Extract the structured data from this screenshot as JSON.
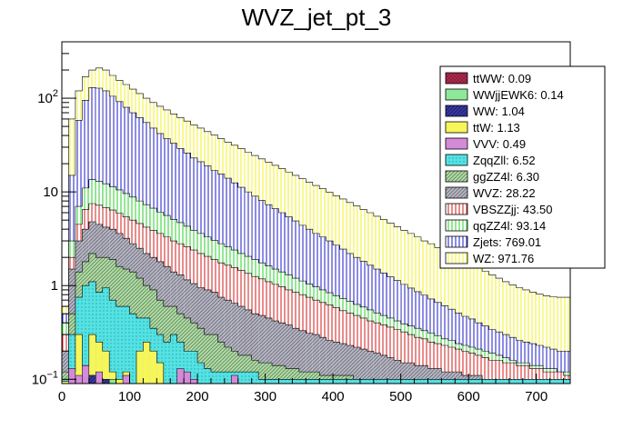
{
  "chart_data": {
    "type": "bar",
    "subtype": "stacked-histogram",
    "title": "WVZ_jet_pt_3",
    "xlabel": "",
    "ylabel": "",
    "x_range": [
      0,
      750
    ],
    "y_range": [
      0.09,
      400
    ],
    "y_scale": "log",
    "bin_width": 10,
    "x_ticks": [
      0,
      100,
      200,
      300,
      400,
      500,
      600,
      700
    ],
    "x_tick_labels": [
      "0",
      "100",
      "200",
      "300",
      "400",
      "500",
      "600",
      "700"
    ],
    "y_tick_labels": [
      {
        "value": 0.1,
        "base": "10",
        "exp": "−1"
      },
      {
        "value": 1,
        "text": "1"
      },
      {
        "value": 10,
        "text": "10"
      },
      {
        "value": 100,
        "base": "10",
        "exp": "2"
      }
    ],
    "legend_position": "top-right",
    "legend": [
      {
        "name": "ttWW",
        "yield": "0.09",
        "label": "ttWW: 0.09"
      },
      {
        "name": "WWjjEWK6",
        "yield": "0.14",
        "label": "WWjjEWK6: 0.14"
      },
      {
        "name": "WW",
        "yield": "1.04",
        "label": "WW: 1.04"
      },
      {
        "name": "ttW",
        "yield": "1.13",
        "label": "ttW: 1.13"
      },
      {
        "name": "VVV",
        "yield": "0.49",
        "label": "VVV: 0.49"
      },
      {
        "name": "ZqqZll",
        "yield": "6.52",
        "label": "ZqqZll: 6.52"
      },
      {
        "name": "ggZZ4l",
        "yield": "6.30",
        "label": "ggZZ4l: 6.30"
      },
      {
        "name": "WVZ",
        "yield": "28.22",
        "label": "WVZ: 28.22"
      },
      {
        "name": "VBSZZjj",
        "yield": "43.50",
        "label": "VBSZZjj: 43.50"
      },
      {
        "name": "qqZZ4l",
        "yield": "93.14",
        "label": "qqZZ4l: 93.14"
      },
      {
        "name": "Zjets",
        "yield": "769.01",
        "label": "Zjets: 769.01"
      },
      {
        "name": "WZ",
        "yield": "971.76",
        "label": "WZ: 971.76"
      }
    ],
    "stack_order": [
      "ttW",
      "ZqqZll",
      "ggZZ4l",
      "WVZ",
      "VBSZZjj",
      "qqZZ4l",
      "Zjets",
      "WZ"
    ],
    "cumulative_tops": {
      "ttW": [
        0.095,
        0.12,
        0.3,
        0.14,
        0.3,
        0.25,
        0.2,
        0.12,
        0.1,
        0.12,
        0.09,
        0.2,
        0.25,
        0.2,
        0.15,
        0.09,
        0.09,
        0.09,
        0.09,
        0.09,
        0.09,
        0.09,
        0.09,
        0.09,
        0.09,
        0.09,
        0.09,
        0.09,
        0.09,
        0.09,
        0.09,
        0.09,
        0.09,
        0.09,
        0.09,
        0.09,
        0.09,
        0.09,
        0.09,
        0.09,
        0.09,
        0.09,
        0.09,
        0.09,
        0.09,
        0.09,
        0.09,
        0.09,
        0.09,
        0.09,
        0.09,
        0.09,
        0.09,
        0.09,
        0.09,
        0.09,
        0.09,
        0.09,
        0.09,
        0.09,
        0.09,
        0.09,
        0.09,
        0.09,
        0.09,
        0.09,
        0.09,
        0.09,
        0.09,
        0.09,
        0.09,
        0.09,
        0.09,
        0.09,
        0.09
      ],
      "ZqqZll": [
        0.1,
        0.3,
        0.75,
        1.0,
        1.1,
        0.85,
        0.95,
        0.7,
        0.6,
        0.6,
        0.5,
        0.45,
        0.45,
        0.35,
        0.3,
        0.25,
        0.3,
        0.25,
        0.2,
        0.2,
        0.15,
        0.13,
        0.12,
        0.12,
        0.12,
        0.12,
        0.12,
        0.12,
        0.12,
        0.1,
        0.1,
        0.1,
        0.1,
        0.1,
        0.1,
        0.1,
        0.1,
        0.1,
        0.1,
        0.1,
        0.1,
        0.1,
        0.1,
        0.1,
        0.1,
        0.1,
        0.1,
        0.1,
        0.1,
        0.1,
        0.1,
        0.1,
        0.1,
        0.1,
        0.1,
        0.1,
        0.1,
        0.1,
        0.1,
        0.1,
        0.1,
        0.1,
        0.1,
        0.1,
        0.1,
        0.1,
        0.1,
        0.1,
        0.1,
        0.1,
        0.1,
        0.1,
        0.1,
        0.1,
        0.1
      ],
      "ggZZ4l": [
        0.12,
        0.5,
        1.4,
        1.8,
        2.2,
        2.0,
        2.0,
        1.9,
        1.6,
        1.5,
        1.4,
        1.2,
        1.0,
        0.9,
        0.7,
        0.6,
        0.6,
        0.5,
        0.45,
        0.4,
        0.35,
        0.3,
        0.3,
        0.25,
        0.22,
        0.2,
        0.18,
        0.18,
        0.16,
        0.15,
        0.15,
        0.14,
        0.14,
        0.13,
        0.13,
        0.12,
        0.12,
        0.12,
        0.11,
        0.11,
        0.11,
        0.11,
        0.11,
        0.1,
        0.1,
        0.1,
        0.1,
        0.1,
        0.1,
        0.1,
        0.1,
        0.1,
        0.1,
        0.1,
        0.1,
        0.1,
        0.1,
        0.1,
        0.1,
        0.1,
        0.1,
        0.1,
        0.1,
        0.1,
        0.1,
        0.1,
        0.1,
        0.1,
        0.1,
        0.1,
        0.1,
        0.1,
        0.1,
        0.1,
        0.1
      ],
      "WVZ": [
        0.2,
        1.5,
        3.0,
        4.0,
        4.8,
        4.5,
        4.2,
        4.0,
        3.6,
        3.2,
        2.8,
        2.5,
        2.2,
        2.0,
        1.8,
        1.6,
        1.4,
        1.3,
        1.15,
        1.05,
        0.95,
        0.9,
        0.85,
        0.75,
        0.7,
        0.65,
        0.6,
        0.55,
        0.5,
        0.48,
        0.45,
        0.42,
        0.4,
        0.38,
        0.35,
        0.33,
        0.31,
        0.3,
        0.28,
        0.26,
        0.25,
        0.24,
        0.23,
        0.22,
        0.21,
        0.2,
        0.19,
        0.18,
        0.17,
        0.16,
        0.15,
        0.15,
        0.14,
        0.14,
        0.13,
        0.13,
        0.12,
        0.12,
        0.12,
        0.11,
        0.11,
        0.11,
        0.1,
        0.1,
        0.1,
        0.1,
        0.1,
        0.1,
        0.1,
        0.1,
        0.1,
        0.1,
        0.1,
        0.1,
        0.1
      ],
      "VBSZZjj": [
        0.3,
        2.0,
        4.5,
        6.5,
        7.5,
        7.2,
        6.8,
        6.4,
        5.9,
        5.4,
        5.0,
        4.6,
        4.2,
        3.9,
        3.6,
        3.3,
        3.0,
        2.8,
        2.6,
        2.4,
        2.2,
        2.05,
        1.9,
        1.75,
        1.65,
        1.55,
        1.45,
        1.35,
        1.25,
        1.18,
        1.1,
        1.03,
        0.97,
        0.9,
        0.85,
        0.8,
        0.75,
        0.7,
        0.66,
        0.62,
        0.58,
        0.54,
        0.51,
        0.48,
        0.45,
        0.42,
        0.4,
        0.38,
        0.36,
        0.34,
        0.32,
        0.3,
        0.28,
        0.27,
        0.25,
        0.24,
        0.23,
        0.22,
        0.21,
        0.2,
        0.19,
        0.18,
        0.17,
        0.16,
        0.16,
        0.15,
        0.15,
        0.14,
        0.14,
        0.13,
        0.13,
        0.12,
        0.12,
        0.12,
        0.11
      ],
      "qqZZ4l": [
        0.4,
        3.0,
        7.0,
        11.0,
        13.5,
        13.0,
        12.2,
        11.4,
        10.5,
        9.6,
        8.8,
        8.0,
        7.3,
        6.7,
        6.1,
        5.6,
        5.1,
        4.7,
        4.3,
        3.9,
        3.6,
        3.3,
        3.05,
        2.8,
        2.6,
        2.4,
        2.2,
        2.05,
        1.9,
        1.75,
        1.62,
        1.5,
        1.4,
        1.3,
        1.2,
        1.12,
        1.04,
        0.97,
        0.9,
        0.84,
        0.78,
        0.73,
        0.68,
        0.63,
        0.59,
        0.55,
        0.51,
        0.48,
        0.45,
        0.42,
        0.39,
        0.37,
        0.35,
        0.33,
        0.31,
        0.29,
        0.27,
        0.26,
        0.24,
        0.23,
        0.22,
        0.21,
        0.2,
        0.19,
        0.18,
        0.17,
        0.16,
        0.15,
        0.15,
        0.14,
        0.14,
        0.13,
        0.13,
        0.12,
        0.12
      ],
      "Zjets": [
        0.5,
        15,
        58,
        95,
        130,
        128,
        120,
        105,
        92,
        80,
        70,
        62,
        55,
        48,
        42,
        37,
        33,
        29,
        26,
        23,
        21,
        19,
        17,
        15.5,
        14,
        12.5,
        11.2,
        10,
        9,
        8.1,
        7.3,
        6.6,
        6,
        5.4,
        4.9,
        4.4,
        4,
        3.6,
        3.3,
        3,
        2.7,
        2.45,
        2.2,
        2.0,
        1.82,
        1.65,
        1.5,
        1.36,
        1.24,
        1.13,
        1.03,
        0.94,
        0.86,
        0.79,
        0.72,
        0.66,
        0.61,
        0.56,
        0.51,
        0.47,
        0.44,
        0.4,
        0.37,
        0.34,
        0.32,
        0.3,
        0.28,
        0.26,
        0.25,
        0.24,
        0.23,
        0.22,
        0.21,
        0.2,
        0.2
      ],
      "WZ": [
        0.6,
        60,
        120,
        170,
        200,
        210,
        200,
        175,
        155,
        140,
        125,
        112,
        100,
        90,
        82,
        75,
        68,
        62,
        57,
        52,
        48,
        44,
        40.5,
        37,
        34,
        31.5,
        29,
        26.5,
        24.5,
        22.5,
        20.8,
        19.2,
        17.7,
        16.3,
        15,
        13.8,
        12.7,
        11.7,
        10.8,
        9.9,
        9.1,
        8.4,
        7.7,
        7.1,
        6.5,
        6,
        5.5,
        5.05,
        4.65,
        4.25,
        3.9,
        3.6,
        3.3,
        3.0,
        2.8,
        2.55,
        2.35,
        2.15,
        1.98,
        1.82,
        1.67,
        1.54,
        1.42,
        1.3,
        1.2,
        1.1,
        1.02,
        0.95,
        0.9,
        0.85,
        0.81,
        0.78,
        0.76,
        0.75,
        0.75
      ]
    },
    "overlays": {
      "VVV": [
        0.09,
        0.13,
        0.11,
        0.14,
        0.11,
        0.12,
        0.09,
        0.1,
        0.09,
        0.11,
        0.09,
        0.09,
        0.09,
        0.09,
        0.09,
        0.09,
        0.09,
        0.13,
        0.12,
        0.1,
        0.09,
        0.09,
        0.09,
        0.09,
        0.09,
        0.11,
        0.09,
        0.09,
        0.09,
        0.09,
        0.09,
        0.09,
        0.09,
        0.09,
        0.09,
        0.09,
        0.09,
        0.09,
        0.09,
        0.09,
        0.09,
        0.09,
        0.09,
        0.09,
        0.09,
        0.09,
        0.09,
        0.09,
        0.09,
        0.09,
        0.09,
        0.09,
        0.09,
        0.09,
        0.09,
        0.09,
        0.09,
        0.09,
        0.09,
        0.09,
        0.09,
        0.09,
        0.09,
        0.09,
        0.09,
        0.09,
        0.09,
        0.09,
        0.09,
        0.09,
        0.09,
        0.09,
        0.09,
        0.09,
        0.09
      ],
      "WW": [
        0.09,
        0.09,
        0.09,
        0.09,
        0.11,
        0.09,
        0.1,
        0.09,
        0.09,
        0.09,
        0.09,
        0.09,
        0.09,
        0.09,
        0.09,
        0.09,
        0.09,
        0.09,
        0.09,
        0.09,
        0.09,
        0.09,
        0.09,
        0.09,
        0.09,
        0.09,
        0.09,
        0.09,
        0.09,
        0.09,
        0.09,
        0.09,
        0.09,
        0.09,
        0.09,
        0.09,
        0.09,
        0.09,
        0.09,
        0.09,
        0.09,
        0.09,
        0.09,
        0.09,
        0.09,
        0.09,
        0.09,
        0.09,
        0.09,
        0.09,
        0.09,
        0.09,
        0.09,
        0.09,
        0.09,
        0.09,
        0.09,
        0.09,
        0.09,
        0.09,
        0.09,
        0.09,
        0.09,
        0.09,
        0.09,
        0.09,
        0.09,
        0.09,
        0.09,
        0.09,
        0.09,
        0.09,
        0.09,
        0.09,
        0.09
      ],
      "WWjjEWK6": [
        0.09,
        0.09,
        0.09,
        0.09,
        0.09,
        0.09,
        0.09,
        0.1,
        0.09,
        0.09,
        0.09,
        0.09,
        0.09,
        0.09,
        0.09,
        0.09,
        0.09,
        0.09,
        0.09,
        0.09,
        0.09,
        0.09,
        0.09,
        0.09,
        0.09,
        0.09,
        0.09,
        0.09,
        0.09,
        0.09,
        0.09,
        0.09,
        0.09,
        0.09,
        0.09,
        0.09,
        0.09,
        0.09,
        0.09,
        0.09,
        0.09,
        0.09,
        0.09,
        0.09,
        0.09,
        0.09,
        0.09,
        0.09,
        0.09,
        0.09,
        0.09,
        0.09,
        0.09,
        0.09,
        0.09,
        0.09,
        0.09,
        0.09,
        0.09,
        0.09,
        0.09,
        0.09,
        0.09,
        0.09,
        0.09,
        0.09,
        0.09,
        0.09,
        0.09,
        0.09,
        0.09,
        0.09,
        0.09,
        0.09,
        0.09
      ]
    },
    "styles": {
      "ttWW": {
        "fill": "#b03050",
        "pattern": "cross",
        "hatch": "#8a1a3a"
      },
      "WWjjEWK6": {
        "fill": "#8fe89a",
        "pattern": "solid",
        "hatch": "#2ea84a"
      },
      "WW": {
        "fill": "#3a3aa0",
        "pattern": "diag",
        "hatch": "#1a1a66"
      },
      "ttW": {
        "fill": "#f6f65a",
        "pattern": "solid",
        "hatch": "#d8d830"
      },
      "VVV": {
        "fill": "#d38ad8",
        "pattern": "solid",
        "hatch": "#a030a8"
      },
      "ZqqZll": {
        "fill": "#55e2e2",
        "pattern": "dots",
        "hatch": "#1aa8b8"
      },
      "ggZZ4l": {
        "fill": "#b5dca8",
        "pattern": "diag",
        "hatch": "#5a8a5a"
      },
      "WVZ": {
        "fill": "#b8b8c4",
        "pattern": "diag",
        "hatch": "#6a6a7a"
      },
      "VBSZZjj": {
        "fill": "#ffffff",
        "pattern": "vert",
        "hatch": "#d01818"
      },
      "qqZZ4l": {
        "fill": "#ffffff",
        "pattern": "vert",
        "hatch": "#2ad02a"
      },
      "Zjets": {
        "fill": "#ffffff",
        "pattern": "vert",
        "hatch": "#1a1ac8"
      },
      "WZ": {
        "fill": "#ffffff",
        "pattern": "vert",
        "hatch": "#f0f020"
      }
    }
  }
}
